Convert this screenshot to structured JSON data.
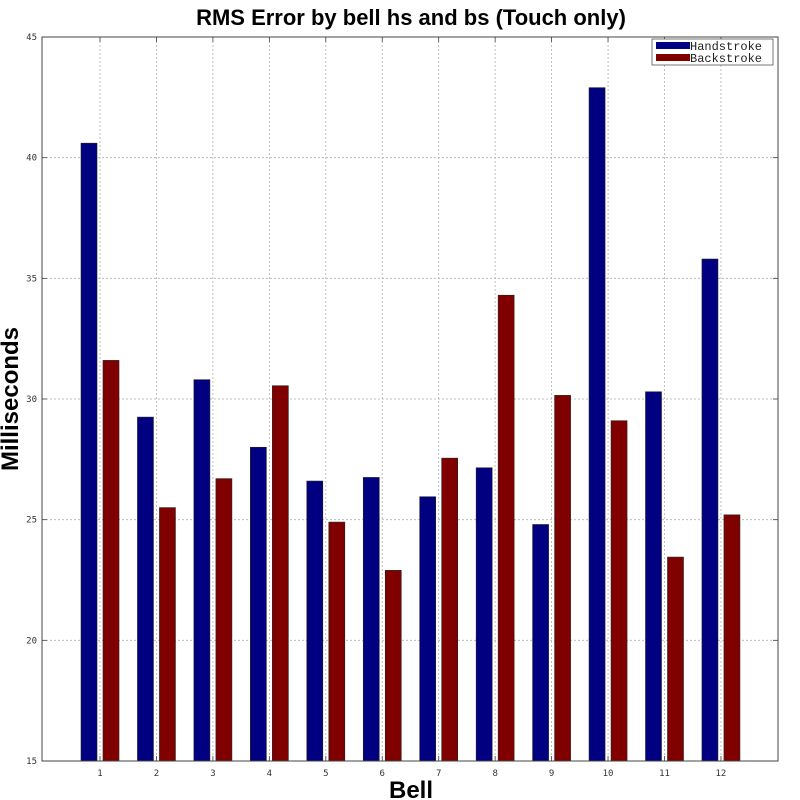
{
  "chart_data": {
    "type": "bar",
    "title": "RMS Error by bell hs and bs (Touch only)",
    "xlabel": "Bell",
    "ylabel": "Milliseconds",
    "ylim": [
      15,
      45
    ],
    "yticks": [
      15,
      20,
      25,
      30,
      35,
      40,
      45
    ],
    "categories": [
      "1",
      "2",
      "3",
      "4",
      "5",
      "6",
      "7",
      "8",
      "9",
      "10",
      "11",
      "12"
    ],
    "grid": true,
    "legend_position": "top-right",
    "series": [
      {
        "name": "Handstroke",
        "color": "#000080",
        "values": [
          40.6,
          29.25,
          30.8,
          28.0,
          26.6,
          26.75,
          25.95,
          27.15,
          24.8,
          42.9,
          30.3,
          35.8
        ]
      },
      {
        "name": "Backstroke",
        "color": "#800000",
        "values": [
          31.6,
          25.5,
          26.7,
          30.55,
          24.9,
          22.9,
          27.55,
          34.3,
          30.15,
          29.1,
          23.45,
          25.2
        ]
      }
    ]
  }
}
